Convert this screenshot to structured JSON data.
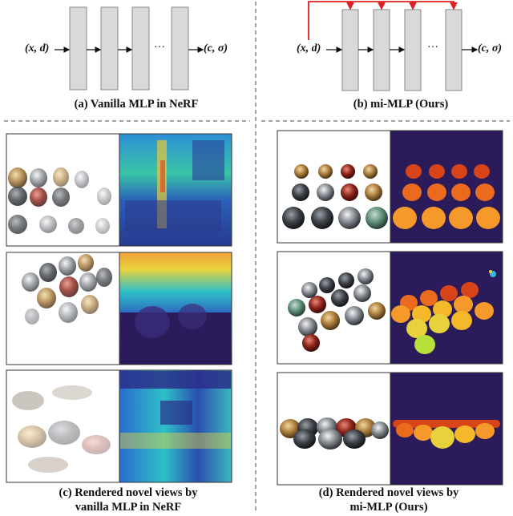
{
  "panel_a": {
    "input_label": "(x, d)",
    "output_label": "(c, σ)",
    "ellipsis": "···",
    "caption": "(a) Vanilla MLP in NeRF"
  },
  "panel_b": {
    "input_label": "(x, d)",
    "output_label": "(c, σ)",
    "ellipsis": "···",
    "caption": "(b) mi-MLP (Ours)",
    "skip_color": "#e02020"
  },
  "panel_c": {
    "caption_line1": "(c) Rendered novel views by",
    "caption_line2": "vanilla MLP in NeRF"
  },
  "panel_d": {
    "caption_line1": "(d) Rendered novel views by",
    "caption_line2": "mi-MLP (Ours)"
  },
  "colors": {
    "layer_fill": "#d9d9d9",
    "depth_background": "#2c1b5a",
    "divider": "#555555"
  }
}
